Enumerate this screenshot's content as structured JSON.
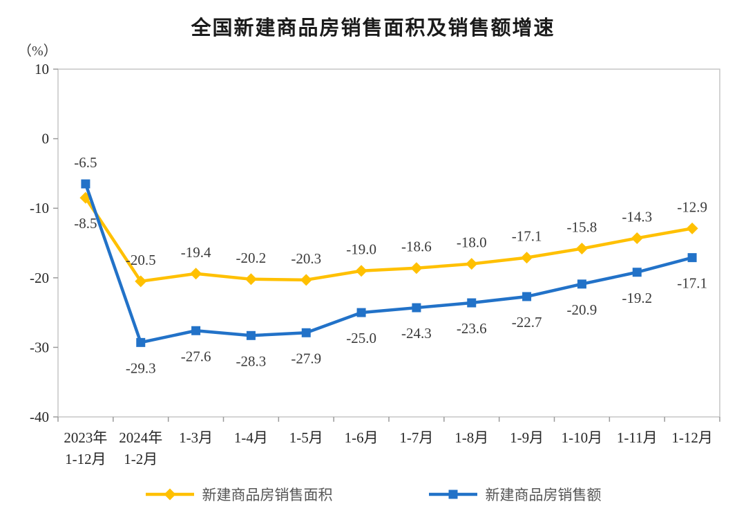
{
  "chart_data": {
    "type": "line",
    "title": "全国新建商品房销售面积及销售额增速",
    "ylabel": "（%）",
    "ylim": [
      -40,
      10
    ],
    "yticks": [
      10,
      0,
      -10,
      -20,
      -30,
      -40
    ],
    "grid": false,
    "legend_position": "bottom",
    "categories": [
      [
        "2023年",
        "1-12月"
      ],
      [
        "2024年",
        "1-2月"
      ],
      [
        "1-3月"
      ],
      [
        "1-4月"
      ],
      [
        "1-5月"
      ],
      [
        "1-6月"
      ],
      [
        "1-7月"
      ],
      [
        "1-8月"
      ],
      [
        "1-9月"
      ],
      [
        "1-10月"
      ],
      [
        "1-11月"
      ],
      [
        "1-12月"
      ]
    ],
    "series": [
      {
        "name": "新建商品房销售面积",
        "color": "#FFC000",
        "marker": "diamond",
        "label_position": "above",
        "first_label_position": "below",
        "values": [
          -8.5,
          -20.5,
          -19.4,
          -20.2,
          -20.3,
          -19.0,
          -18.6,
          -18.0,
          -17.1,
          -15.8,
          -14.3,
          -12.9
        ]
      },
      {
        "name": "新建商品房销售额",
        "color": "#2272C8",
        "marker": "square",
        "label_position": "below",
        "first_label_position": "above",
        "values": [
          -6.5,
          -29.3,
          -27.6,
          -28.3,
          -27.9,
          -25.0,
          -24.3,
          -23.6,
          -22.7,
          -20.9,
          -19.2,
          -17.1
        ]
      }
    ]
  }
}
